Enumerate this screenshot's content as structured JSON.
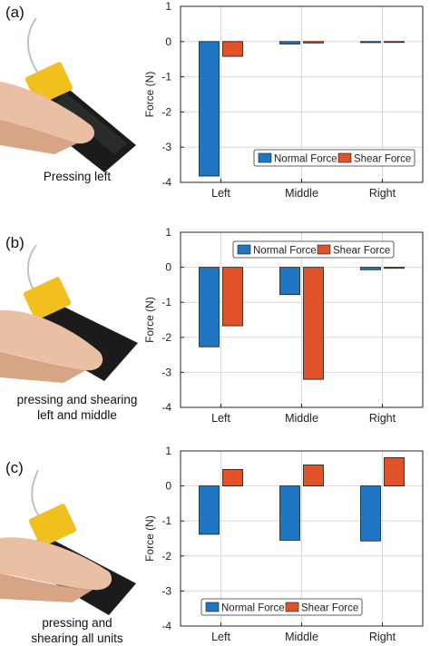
{
  "colors": {
    "normal": "#1f77c4",
    "shear": "#e0522a",
    "grid": "#d9d9d9",
    "axis": "#262626"
  },
  "panels": [
    {
      "label": "(a)",
      "caption": [
        "Pressing left"
      ],
      "legend_position": "bottom-right"
    },
    {
      "label": "(b)",
      "caption": [
        "pressing and shearing",
        "left and middle"
      ],
      "legend_position": "top-right"
    },
    {
      "label": "(c)",
      "caption": [
        "pressing and",
        "shearing all units"
      ],
      "legend_position": "bottom-center"
    }
  ],
  "chart_data": [
    {
      "type": "bar",
      "categories": [
        "Left",
        "Middle",
        "Right"
      ],
      "ylabel": "Force (N)",
      "ylim": [
        -4,
        1
      ],
      "yticks": [
        "1",
        "0",
        "-1",
        "-2",
        "-3",
        "-4"
      ],
      "grid": true,
      "legend_position": "bottom-right",
      "series": [
        {
          "name": "Normal Force",
          "values": [
            -3.82,
            -0.07,
            -0.03
          ]
        },
        {
          "name": "Shear Force",
          "values": [
            -0.42,
            -0.04,
            -0.02
          ]
        }
      ]
    },
    {
      "type": "bar",
      "categories": [
        "Left",
        "Middle",
        "Right"
      ],
      "ylabel": "Force (N)",
      "ylim": [
        -4,
        1
      ],
      "yticks": [
        "1",
        "0",
        "-1",
        "-2",
        "-3",
        "-4"
      ],
      "grid": true,
      "legend_position": "top-right",
      "series": [
        {
          "name": "Normal Force",
          "values": [
            -2.27,
            -0.78,
            -0.07
          ]
        },
        {
          "name": "Shear Force",
          "values": [
            -1.67,
            -3.2,
            -0.03
          ]
        }
      ]
    },
    {
      "type": "bar",
      "categories": [
        "Left",
        "Middle",
        "Right"
      ],
      "ylabel": "Force (N)",
      "ylim": [
        -4,
        1
      ],
      "yticks": [
        "1",
        "0",
        "-1",
        "-2",
        "-3",
        "-4"
      ],
      "grid": true,
      "legend_position": "bottom-center",
      "series": [
        {
          "name": "Normal Force",
          "values": [
            -1.38,
            -1.55,
            -1.57
          ]
        },
        {
          "name": "Shear Force",
          "values": [
            0.47,
            0.6,
            0.81
          ]
        }
      ]
    }
  ]
}
